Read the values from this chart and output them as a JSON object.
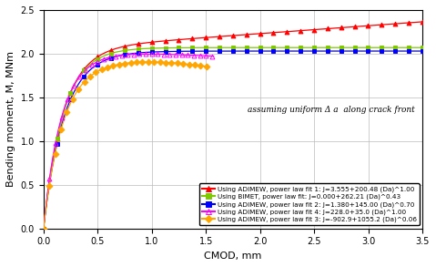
{
  "xlabel": "CMOD, mm",
  "ylabel": "Bending moment, M, MNm",
  "xlim": [
    0,
    3.5
  ],
  "ylim": [
    0.0,
    2.5
  ],
  "xticks": [
    0.0,
    0.5,
    1.0,
    1.5,
    2.0,
    2.5,
    3.0,
    3.5
  ],
  "yticks": [
    0.0,
    0.5,
    1.0,
    1.5,
    2.0,
    2.5
  ],
  "annotation": "assuming uniform Δ a  along crack front",
  "series": [
    {
      "label": "Using ADIMEW, power law fit 1: J=3.555+200.48 (Da)^1.00",
      "color": "red",
      "marker": "^",
      "filled": true,
      "type": "adimew1"
    },
    {
      "label": "Using BIMET, power law fit: J=0.000+262.21 (Da)^0.43",
      "color": "#7ec800",
      "marker": "s",
      "filled": true,
      "type": "bimet"
    },
    {
      "label": "Using ADIMEW, power law fit 2: J=1.380+145.00 (Da)^0.70",
      "color": "blue",
      "marker": "s",
      "filled": true,
      "type": "adimew2"
    },
    {
      "label": "Using ADIMEW, power law fit 4: J=228.0+35.0 (Da)^1.00",
      "color": "magenta",
      "marker": "^",
      "filled": false,
      "type": "adimew4"
    },
    {
      "label": "Using ADIMEW, power law fit 3: J=-902.9+1055.2 (Da)^0.06",
      "color": "orange",
      "marker": "D",
      "filled": true,
      "type": "adimew3"
    }
  ],
  "figsize": [
    4.79,
    2.93
  ],
  "dpi": 100,
  "background": "white",
  "grid_color": "#bbbbbb",
  "legend_fontsize": 5.2,
  "axis_fontsize": 8,
  "tick_fontsize": 7
}
